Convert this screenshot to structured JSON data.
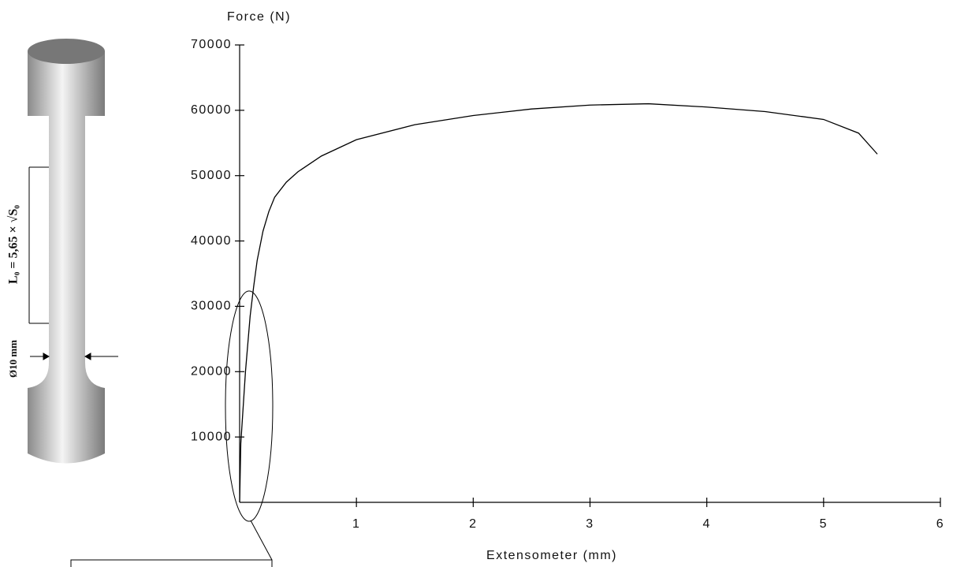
{
  "chart_data": {
    "type": "line",
    "y_label": "Force (N)",
    "x_label": "Extensometer (mm)",
    "x": [
      0,
      0.01,
      0.05,
      0.09,
      0.12,
      0.15,
      0.2,
      0.25,
      0.3,
      0.4,
      0.5,
      0.7,
      1,
      1.5,
      2,
      2.5,
      3,
      3.5,
      4,
      4.5,
      5,
      5.3,
      5.46
    ],
    "series": [
      {
        "name": "Force",
        "color": "#000000",
        "values": [
          0,
          9000,
          20000,
          28500,
          33000,
          37000,
          41500,
          44500,
          46700,
          49000,
          50600,
          53000,
          55500,
          57800,
          59200,
          60200,
          60800,
          61000,
          60500,
          59800,
          58600,
          56500,
          53300
        ]
      }
    ],
    "xlim": [
      0,
      6
    ],
    "xticks": [
      1,
      2,
      3,
      4,
      5,
      6
    ],
    "ylim": [
      0,
      70000
    ],
    "yticks": [
      10000,
      20000,
      30000,
      40000,
      50000,
      60000,
      70000
    ],
    "grid": false
  },
  "specimen": {
    "gauge_length": "L₀ = 5,65 × √S₀",
    "diameter": "Ø10 mm"
  }
}
